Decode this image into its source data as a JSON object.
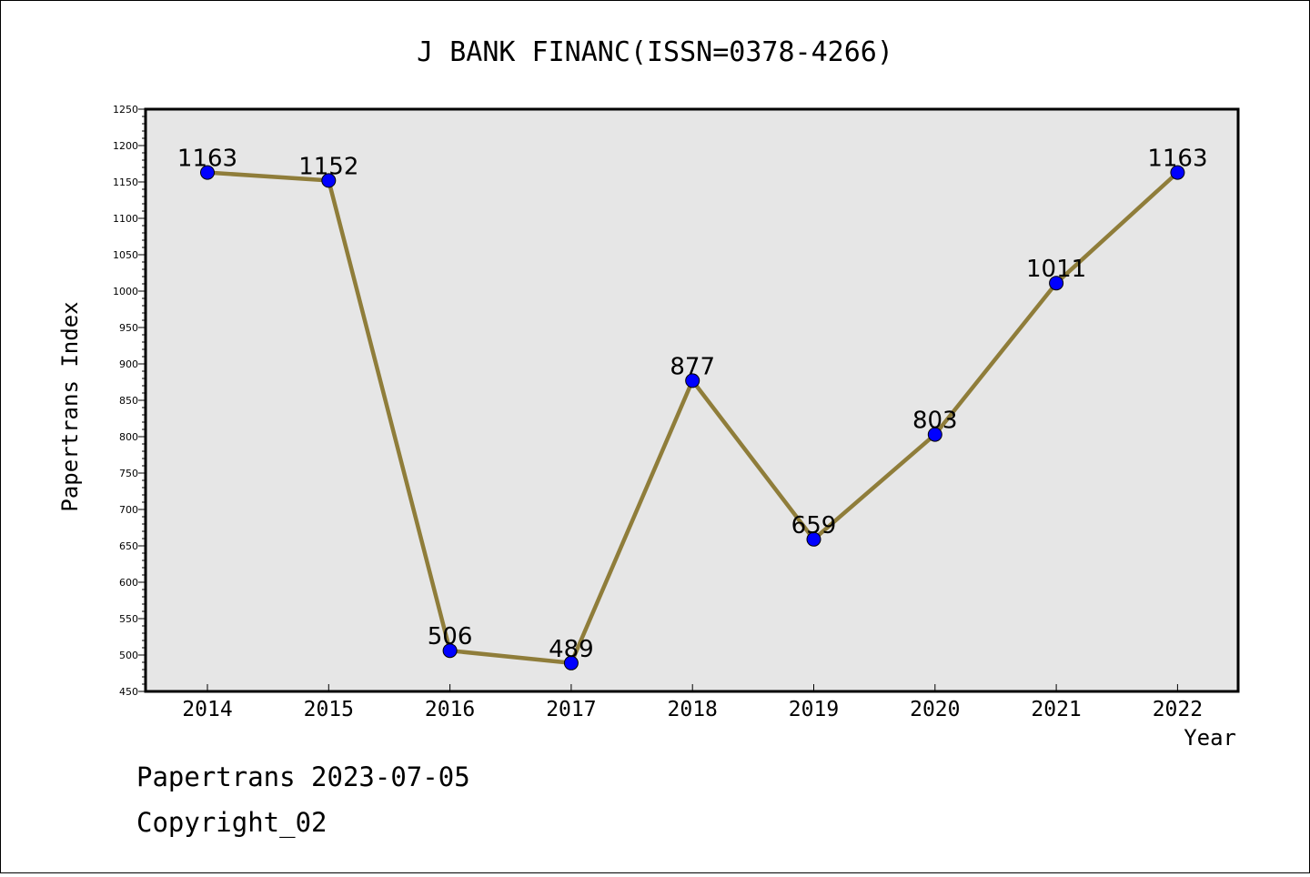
{
  "chart_data": {
    "type": "line",
    "title": "J BANK FINANC(ISSN=0378-4266)",
    "xlabel": "Year",
    "ylabel": "Papertrans Index",
    "categories": [
      "2014",
      "2015",
      "2016",
      "2017",
      "2018",
      "2019",
      "2020",
      "2021",
      "2022"
    ],
    "values": [
      1163,
      1152,
      506,
      489,
      877,
      659,
      803,
      1011,
      1163
    ],
    "data_labels": [
      "1163",
      "1152",
      "506",
      "489",
      "877",
      "659",
      "803",
      "1011",
      "1163"
    ],
    "ylim": [
      450,
      1250
    ],
    "yticks": [
      "450",
      "500",
      "550",
      "600",
      "650",
      "700",
      "750",
      "800",
      "850",
      "900",
      "950",
      "1000",
      "1050",
      "1100",
      "1150",
      "1200",
      "1250"
    ],
    "grid": false,
    "legend": "none",
    "colors": {
      "line": "#8f7d3a",
      "marker": "#0000ff",
      "plot_background": "#e6e6e6"
    }
  },
  "footer": {
    "line1": "Papertrans 2023-07-05",
    "line2": "Copyright_02"
  }
}
